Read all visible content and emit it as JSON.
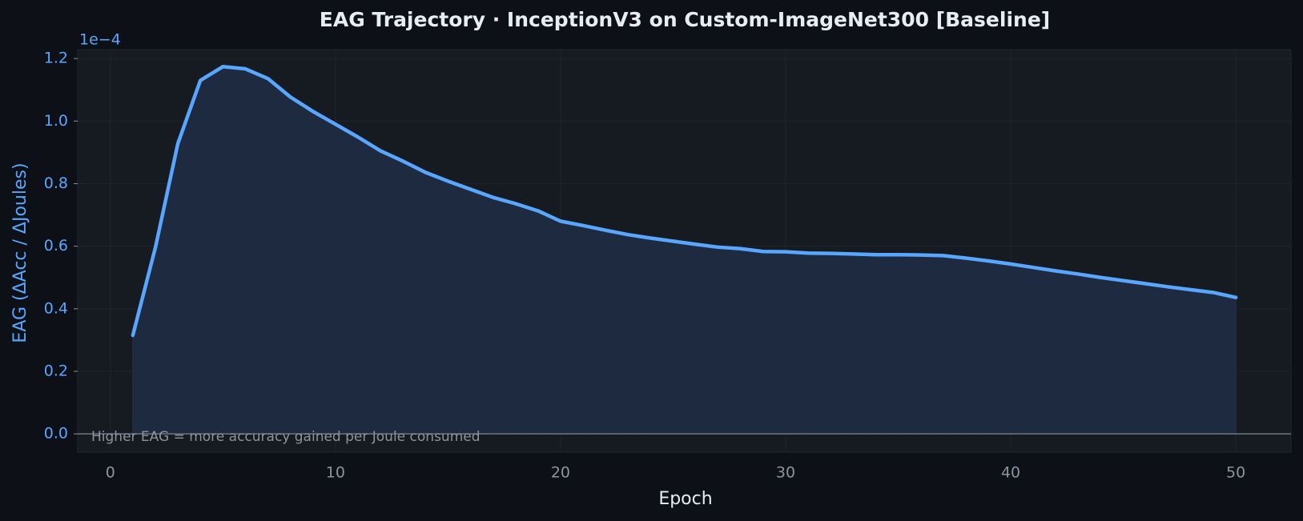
{
  "chart_data": {
    "type": "area-line",
    "title": "EAG Trajectory  ·  InceptionV3 on Custom-ImageNet300  [Baseline]",
    "xlabel": "Epoch",
    "ylabel": "EAG  (ΔAcc / ΔJoules)",
    "y_offset_label": "1e−4",
    "annotation": "Higher EAG = more accuracy gained per Joule consumed",
    "x": [
      1,
      2,
      3,
      4,
      5,
      6,
      7,
      8,
      9,
      10,
      11,
      12,
      13,
      14,
      15,
      16,
      17,
      18,
      19,
      20,
      21,
      22,
      23,
      24,
      25,
      26,
      27,
      28,
      29,
      30,
      31,
      32,
      33,
      34,
      35,
      36,
      37,
      38,
      39,
      40,
      41,
      42,
      43,
      44,
      45,
      46,
      47,
      48,
      49,
      50
    ],
    "series": [
      {
        "name": "EAG",
        "color": "#58a6ff",
        "fill_color": "#1e2a3f",
        "values": [
          0.315,
          0.595,
          0.928,
          1.13,
          1.174,
          1.167,
          1.136,
          1.077,
          1.031,
          0.99,
          0.949,
          0.905,
          0.872,
          0.836,
          0.808,
          0.782,
          0.756,
          0.736,
          0.713,
          0.68,
          0.666,
          0.651,
          0.637,
          0.626,
          0.616,
          0.606,
          0.597,
          0.592,
          0.583,
          0.582,
          0.578,
          0.577,
          0.575,
          0.573,
          0.573,
          0.572,
          0.57,
          0.562,
          0.553,
          0.543,
          0.532,
          0.521,
          0.511,
          0.5,
          0.49,
          0.48,
          0.47,
          0.461,
          0.452,
          0.436
        ]
      }
    ],
    "xlim": [
      -1.45,
      52.45
    ],
    "ylim": [
      -0.0585,
      1.2285
    ],
    "xticks": [
      0,
      10,
      20,
      30,
      40,
      50
    ],
    "yticks": [
      {
        "value": 0,
        "label": "0.0"
      },
      0.2,
      0.4,
      0.6,
      0.8,
      {
        "value": 1,
        "label": "1.0"
      },
      1.2
    ],
    "grid": true,
    "zero_line": true
  }
}
